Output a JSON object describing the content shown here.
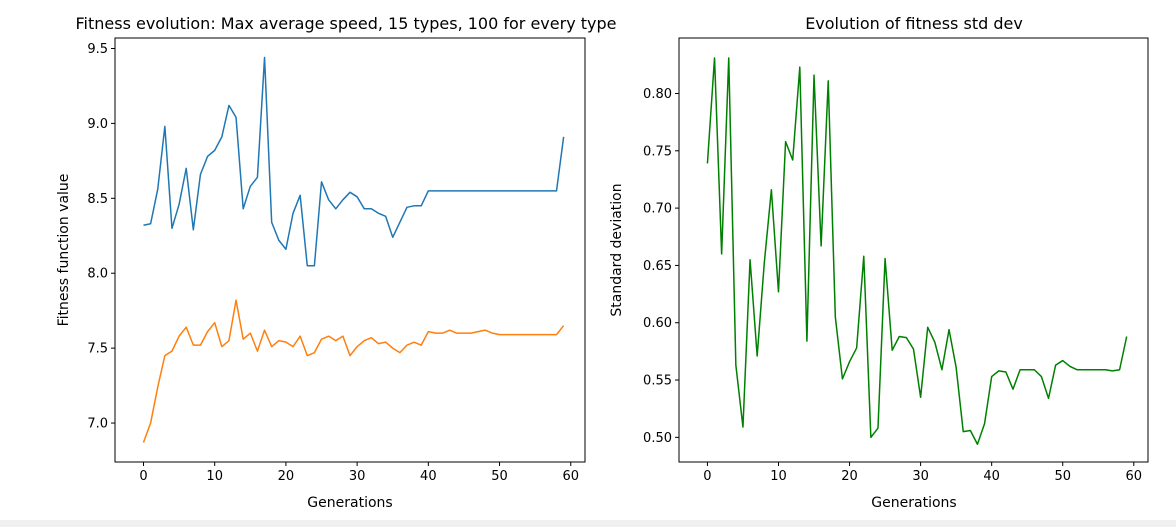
{
  "chart_data": [
    {
      "type": "line",
      "title": "Fitness evolution: Max average speed, 15 types, 100 for every type",
      "xlabel": "Generations",
      "ylabel": "Fitness function value",
      "xlim": [
        -4,
        62
      ],
      "ylim": [
        6.74,
        9.57
      ],
      "xticks": [
        0,
        10,
        20,
        30,
        40,
        50,
        60
      ],
      "xtick_labels": [
        "0",
        "10",
        "20",
        "30",
        "40",
        "50",
        "60"
      ],
      "yticks": [
        7.0,
        7.5,
        8.0,
        8.5,
        9.0,
        9.5
      ],
      "ytick_labels": [
        "7.0",
        "7.5",
        "8.0",
        "8.5",
        "9.0",
        "9.5"
      ],
      "grid": false,
      "x": [
        0,
        1,
        2,
        3,
        4,
        5,
        6,
        7,
        8,
        9,
        10,
        11,
        12,
        13,
        14,
        15,
        16,
        17,
        18,
        19,
        20,
        21,
        22,
        23,
        24,
        25,
        26,
        27,
        28,
        29,
        30,
        31,
        32,
        33,
        34,
        35,
        36,
        37,
        38,
        39,
        40,
        41,
        42,
        43,
        44,
        45,
        46,
        47,
        48,
        49,
        50,
        51,
        52,
        53,
        54,
        55,
        56,
        57,
        58,
        59
      ],
      "series": [
        {
          "color": "#1f77b4",
          "values": [
            8.32,
            8.33,
            8.56,
            8.98,
            8.3,
            8.46,
            8.7,
            8.29,
            8.66,
            8.78,
            8.82,
            8.91,
            9.12,
            9.04,
            8.43,
            8.58,
            8.64,
            9.44,
            8.34,
            8.22,
            8.16,
            8.4,
            8.52,
            8.05,
            8.05,
            8.61,
            8.49,
            8.43,
            8.49,
            8.54,
            8.51,
            8.43,
            8.43,
            8.4,
            8.38,
            8.24,
            8.34,
            8.44,
            8.45,
            8.45,
            8.55,
            8.55,
            8.55,
            8.55,
            8.55,
            8.55,
            8.55,
            8.55,
            8.55,
            8.55,
            8.55,
            8.55,
            8.55,
            8.55,
            8.55,
            8.55,
            8.55,
            8.55,
            8.55,
            8.91
          ]
        },
        {
          "color": "#ff7f0e",
          "values": [
            6.87,
            7.0,
            7.24,
            7.45,
            7.48,
            7.58,
            7.64,
            7.52,
            7.52,
            7.61,
            7.67,
            7.51,
            7.55,
            7.82,
            7.56,
            7.6,
            7.48,
            7.62,
            7.51,
            7.55,
            7.54,
            7.51,
            7.58,
            7.45,
            7.47,
            7.56,
            7.58,
            7.55,
            7.58,
            7.45,
            7.51,
            7.55,
            7.57,
            7.53,
            7.54,
            7.5,
            7.47,
            7.52,
            7.54,
            7.52,
            7.61,
            7.6,
            7.6,
            7.62,
            7.6,
            7.6,
            7.6,
            7.61,
            7.62,
            7.6,
            7.59,
            7.59,
            7.59,
            7.59,
            7.59,
            7.59,
            7.59,
            7.59,
            7.59,
            7.65
          ]
        }
      ]
    },
    {
      "type": "line",
      "title": "Evolution of fitness std dev",
      "xlabel": "Generations",
      "ylabel": "Standard deviation",
      "xlim": [
        -4,
        62
      ],
      "ylim": [
        0.4785,
        0.8484
      ],
      "xticks": [
        0,
        10,
        20,
        30,
        40,
        50,
        60
      ],
      "xtick_labels": [
        "0",
        "10",
        "20",
        "30",
        "40",
        "50",
        "60"
      ],
      "yticks": [
        0.5,
        0.55,
        0.6,
        0.65,
        0.7,
        0.75,
        0.8
      ],
      "ytick_labels": [
        "0.50",
        "0.55",
        "0.60",
        "0.65",
        "0.70",
        "0.75",
        "0.80"
      ],
      "grid": false,
      "x": [
        0,
        1,
        2,
        3,
        4,
        5,
        6,
        7,
        8,
        9,
        10,
        11,
        12,
        13,
        14,
        15,
        16,
        17,
        18,
        19,
        20,
        21,
        22,
        23,
        24,
        25,
        26,
        27,
        28,
        29,
        30,
        31,
        32,
        33,
        34,
        35,
        36,
        37,
        38,
        39,
        40,
        41,
        42,
        43,
        44,
        45,
        46,
        47,
        48,
        49,
        50,
        51,
        52,
        53,
        54,
        55,
        56,
        57,
        58,
        59
      ],
      "series": [
        {
          "color": "#008000",
          "values": [
            0.739,
            0.831,
            0.66,
            0.831,
            0.563,
            0.509,
            0.655,
            0.571,
            0.652,
            0.716,
            0.627,
            0.758,
            0.742,
            0.823,
            0.584,
            0.816,
            0.667,
            0.811,
            0.605,
            0.551,
            0.566,
            0.578,
            0.658,
            0.5,
            0.508,
            0.656,
            0.576,
            0.588,
            0.587,
            0.577,
            0.535,
            0.596,
            0.583,
            0.559,
            0.594,
            0.561,
            0.505,
            0.506,
            0.494,
            0.512,
            0.553,
            0.558,
            0.557,
            0.542,
            0.559,
            0.559,
            0.559,
            0.553,
            0.534,
            0.563,
            0.567,
            0.562,
            0.559,
            0.559,
            0.559,
            0.559,
            0.559,
            0.558,
            0.559,
            0.588
          ]
        }
      ]
    }
  ]
}
